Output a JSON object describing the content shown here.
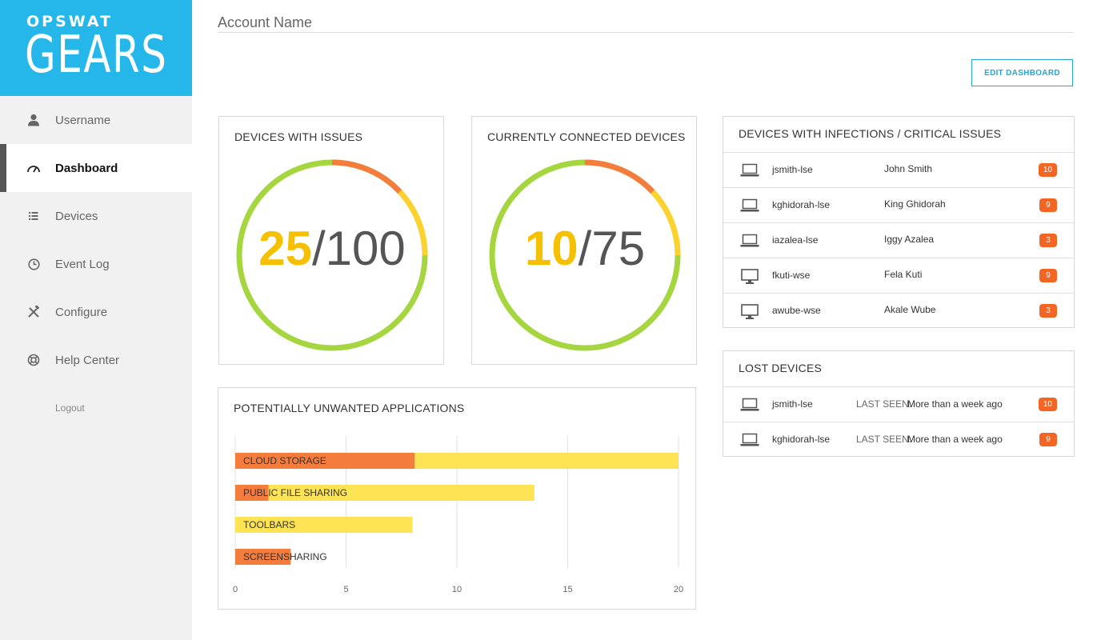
{
  "sidebar": {
    "brand": "OPSWAT",
    "product": "GEARS",
    "items": [
      {
        "label": "Username",
        "icon": "user-icon"
      },
      {
        "label": "Dashboard",
        "icon": "speedometer-icon",
        "active": true
      },
      {
        "label": "Devices",
        "icon": "list-icon"
      },
      {
        "label": "Event Log",
        "icon": "clock-icon"
      },
      {
        "label": "Configure",
        "icon": "tools-icon"
      },
      {
        "label": "Help Center",
        "icon": "lifebuoy-icon"
      }
    ],
    "logout": "Logout"
  },
  "header": {
    "account_name": "Account Name",
    "edit_button": "EDIT DASHBOARD"
  },
  "colors": {
    "brand": "#26b7ea",
    "green": "#a5d63f",
    "orange": "#f47c3c",
    "yellow": "#fcd32e",
    "badge": "#f26522",
    "accent_number": "#f5c000"
  },
  "gauges": [
    {
      "title": "DEVICES WITH ISSUES",
      "value": "25",
      "total": "/100",
      "segments": {
        "orange": 0.13,
        "yellow": 0.12,
        "green": 0.75
      }
    },
    {
      "title": "CURRENTLY CONNECTED DEVICES",
      "value": "10",
      "total": "/75",
      "segments": {
        "orange": 0.13,
        "yellow": 0.12,
        "green": 0.75
      }
    }
  ],
  "infections": {
    "title": "DEVICES WITH INFECTIONS / CRITICAL ISSUES",
    "rows": [
      {
        "device": "jsmith-lse",
        "owner": "John Smith",
        "count": "10",
        "icon": "laptop-icon"
      },
      {
        "device": "kghidorah-lse",
        "owner": "King Ghidorah",
        "count": "9",
        "icon": "laptop-icon"
      },
      {
        "device": "iazalea-lse",
        "owner": "Iggy Azalea",
        "count": "3",
        "icon": "laptop-icon"
      },
      {
        "device": "fkuti-wse",
        "owner": "Fela Kuti",
        "count": "9",
        "icon": "desktop-icon"
      },
      {
        "device": "awube-wse",
        "owner": "Akale Wube",
        "count": "3",
        "icon": "desktop-icon"
      }
    ]
  },
  "lost": {
    "title": "LOST DEVICES",
    "seen_label": "LAST SEEN:",
    "rows": [
      {
        "device": "jsmith-lse",
        "last_seen": "More than a week ago",
        "count": "10",
        "icon": "laptop-icon"
      },
      {
        "device": "kghidorah-lse",
        "last_seen": "More than a week ago",
        "count": "9",
        "icon": "laptop-icon"
      }
    ]
  },
  "chart_data": {
    "type": "bar",
    "orientation": "horizontal",
    "stacked": true,
    "title": "POTENTIALLY UNWANTED APPLICATIONS",
    "categories": [
      "CLOUD STORAGE",
      "PUBLIC FILE SHARING",
      "TOOLBARS",
      "SCREENSHARING"
    ],
    "series": [
      {
        "color": "#f47c3c",
        "values": [
          8.1,
          1.5,
          0,
          2.5
        ]
      },
      {
        "color": "#fee354",
        "values": [
          11.9,
          12.0,
          8.0,
          0
        ]
      }
    ],
    "xticks": [
      "0",
      "5",
      "10",
      "15",
      "20"
    ],
    "xlim": [
      0,
      20
    ],
    "grid": true
  }
}
